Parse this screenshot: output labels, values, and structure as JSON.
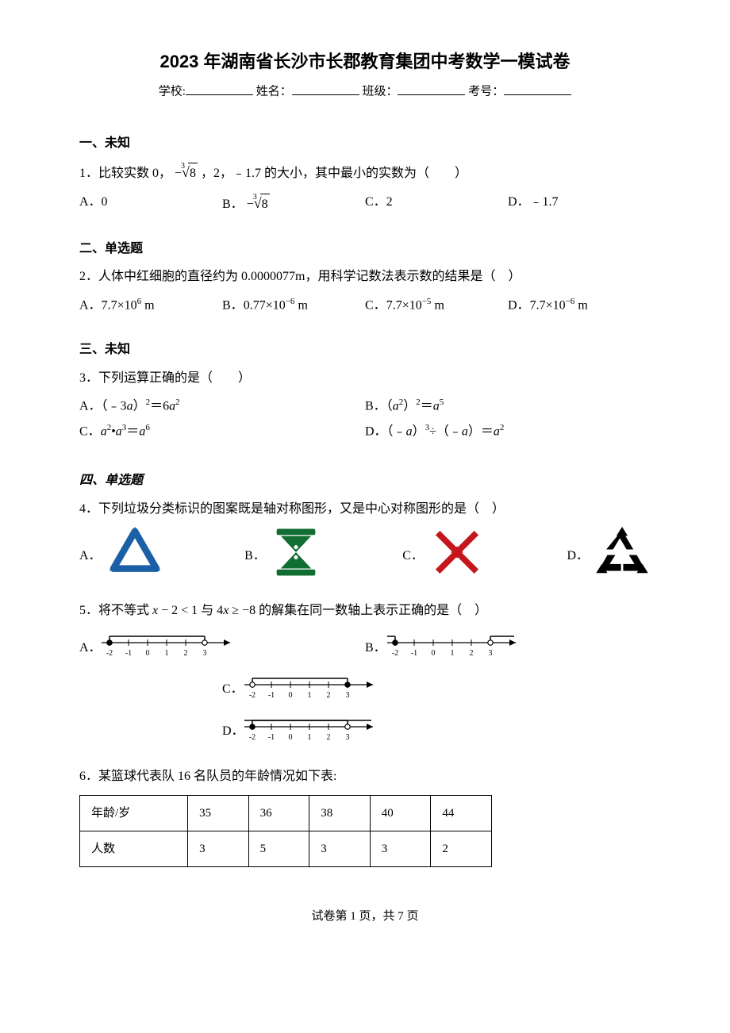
{
  "title": "2023 年湖南省长沙市长郡教育集团中考数学一模试卷",
  "info": {
    "school_label": "学校:",
    "name_label": "姓名：",
    "class_label": "班级：",
    "examno_label": "考号："
  },
  "sections": {
    "s1": "一、未知",
    "s2": "二、单选题",
    "s3": "三、未知",
    "s4": "四、单选题"
  },
  "q1": {
    "stem_a": "1．比较实数 0，",
    "stem_b": "，2，﹣1.7 的大小，其中最小的实数为（　　）",
    "rad_neg": "−",
    "rad_idx": "3",
    "rad_body": "8",
    "optA": "A．0",
    "optB_pre": "B．",
    "optC": "C．2",
    "optD": "D．﹣1.7"
  },
  "q2": {
    "stem": "2．人体中红细胞的直径约为 0.0000077m，用科学记数法表示数的结果是（　）",
    "A_pre": "A．",
    "A_coef": "7.7×10",
    "A_exp": "6",
    "A_unit": " m",
    "B_pre": "B．",
    "B_coef": "0.77×10",
    "B_exp": "−6",
    "B_unit": " m",
    "C_pre": "C．",
    "C_coef": "7.7×10",
    "C_exp": "−5",
    "C_unit": " m",
    "D_pre": "D．",
    "D_coef": "7.7×10",
    "D_exp": "−6",
    "D_unit": " m"
  },
  "q3": {
    "stem": "3．下列运算正确的是（　　）",
    "A_pre": "A．（﹣3",
    "A_var": "a",
    "A_mid": "）",
    "A_e1": "2",
    "A_eq": "＝6",
    "A_var2": "a",
    "A_e2": "2",
    "B_pre": "B．（",
    "B_var": "a",
    "B_e1": "2",
    "B_mid": "）",
    "B_e2": "2",
    "B_eq": "＝",
    "B_var2": "a",
    "B_e3": "5",
    "C_pre": "C．",
    "C_a": "a",
    "C_e1": "2",
    "C_dot": "•",
    "C_a2": "a",
    "C_e2": "3",
    "C_eq": "＝",
    "C_a3": "a",
    "C_e3": "6",
    "D_pre": "D．（﹣",
    "D_a": "a",
    "D_mid": "）",
    "D_e1": "3",
    "D_div": "÷（﹣",
    "D_a2": "a",
    "D_mid2": "）＝",
    "D_a3": "a",
    "D_e2": "2"
  },
  "q4": {
    "stem": "4．下列垃圾分类标识的图案既是轴对称图形，又是中心对称图形的是（　）",
    "A": "A．",
    "B": "B．",
    "C": "C．",
    "D": "D．",
    "colors": {
      "A": "#1b5fa6",
      "B": "#116e32",
      "C": "#c4161c",
      "D": "#000000"
    }
  },
  "q5": {
    "stem_a": "5．将不等式 ",
    "var_x": "x",
    "ineq1_mid": " − 2 < 1 与 4",
    "ineq2_mid": " ≥ −8 的解集在同一数轴上表示正确的是（　）",
    "A": "A．",
    "B": "B．",
    "C": "C．",
    "D": "D．",
    "ticks": [
      "-2",
      "-1",
      "0",
      "1",
      "2",
      "3"
    ],
    "line_color": "#000000"
  },
  "q6": {
    "stem": "6．某篮球代表队 16 名队员的年龄情况如下表:",
    "table": {
      "r1": [
        "年龄/岁",
        "35",
        "36",
        "38",
        "40",
        "44"
      ],
      "r2": [
        "人数",
        "3",
        "5",
        "3",
        "3",
        "2"
      ]
    }
  },
  "footer": "试卷第 1 页，共 7 页"
}
